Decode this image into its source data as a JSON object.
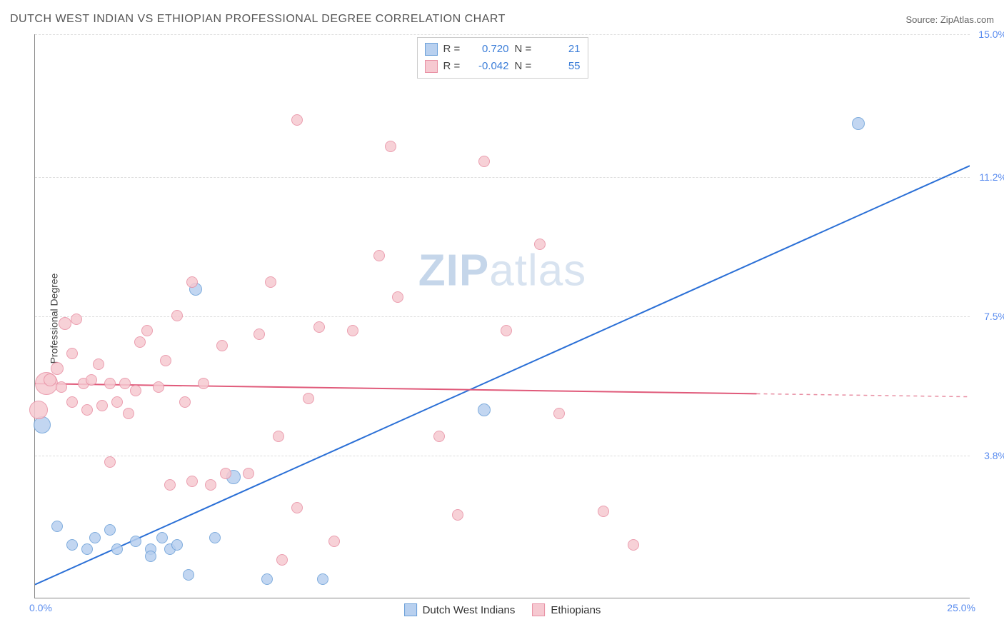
{
  "header": {
    "title": "DUTCH WEST INDIAN VS ETHIOPIAN PROFESSIONAL DEGREE CORRELATION CHART",
    "source": "Source: ZipAtlas.com"
  },
  "chart": {
    "type": "scatter",
    "ylabel": "Professional Degree",
    "xlim": [
      0.0,
      25.0
    ],
    "ylim": [
      0.0,
      15.0
    ],
    "xtick_labels": {
      "min": "0.0%",
      "max": "25.0%"
    },
    "ytick_labels": [
      "3.8%",
      "7.5%",
      "11.2%",
      "15.0%"
    ],
    "ytick_values": [
      3.8,
      7.5,
      11.2,
      15.0
    ],
    "grid_color": "#dddddd",
    "background_color": "#ffffff",
    "axis_color": "#888888",
    "tick_label_color": "#5b8def",
    "watermark": "ZIPatlas",
    "series": [
      {
        "name": "Dutch West Indians",
        "color_fill": "#b8d0ef",
        "color_stroke": "#6a9fd8",
        "trend_color": "#2a6fd6",
        "trend_dashed_color": "#2a6fd6",
        "r": 0.72,
        "n": 21,
        "trend": {
          "x1": 0.0,
          "y1": 0.35,
          "x2": 25.0,
          "y2": 11.5,
          "solid_end_x": 25.0
        },
        "points": [
          {
            "x": 0.2,
            "y": 4.6,
            "r": 12
          },
          {
            "x": 0.6,
            "y": 1.9,
            "r": 8
          },
          {
            "x": 1.0,
            "y": 1.4,
            "r": 8
          },
          {
            "x": 1.4,
            "y": 1.3,
            "r": 8
          },
          {
            "x": 1.6,
            "y": 1.6,
            "r": 8
          },
          {
            "x": 2.0,
            "y": 1.8,
            "r": 8
          },
          {
            "x": 2.2,
            "y": 1.3,
            "r": 8
          },
          {
            "x": 2.7,
            "y": 1.5,
            "r": 8
          },
          {
            "x": 3.1,
            "y": 1.3,
            "r": 8
          },
          {
            "x": 3.1,
            "y": 1.1,
            "r": 8
          },
          {
            "x": 3.4,
            "y": 1.6,
            "r": 8
          },
          {
            "x": 3.6,
            "y": 1.3,
            "r": 8
          },
          {
            "x": 3.8,
            "y": 1.4,
            "r": 8
          },
          {
            "x": 4.1,
            "y": 0.6,
            "r": 8
          },
          {
            "x": 4.8,
            "y": 1.6,
            "r": 8
          },
          {
            "x": 5.3,
            "y": 3.2,
            "r": 10
          },
          {
            "x": 6.2,
            "y": 0.5,
            "r": 8
          },
          {
            "x": 7.7,
            "y": 0.5,
            "r": 8
          },
          {
            "x": 4.3,
            "y": 8.2,
            "r": 9
          },
          {
            "x": 12.0,
            "y": 5.0,
            "r": 9
          },
          {
            "x": 22.0,
            "y": 12.6,
            "r": 9
          }
        ]
      },
      {
        "name": "Ethiopians",
        "color_fill": "#f6c9d1",
        "color_stroke": "#e88fa3",
        "trend_color": "#e05a7a",
        "trend_dashed_color": "#e88fa3",
        "r": -0.042,
        "n": 55,
        "trend": {
          "x1": 0.0,
          "y1": 5.7,
          "x2": 25.0,
          "y2": 5.35,
          "solid_end_x": 19.3
        },
        "points": [
          {
            "x": 0.3,
            "y": 5.7,
            "r": 16
          },
          {
            "x": 0.1,
            "y": 5.0,
            "r": 13
          },
          {
            "x": 0.4,
            "y": 5.8,
            "r": 9
          },
          {
            "x": 0.6,
            "y": 6.1,
            "r": 9
          },
          {
            "x": 0.7,
            "y": 5.6,
            "r": 8
          },
          {
            "x": 0.8,
            "y": 7.3,
            "r": 9
          },
          {
            "x": 1.0,
            "y": 6.5,
            "r": 8
          },
          {
            "x": 1.0,
            "y": 5.2,
            "r": 8
          },
          {
            "x": 1.1,
            "y": 7.4,
            "r": 8
          },
          {
            "x": 1.3,
            "y": 5.7,
            "r": 8
          },
          {
            "x": 1.4,
            "y": 5.0,
            "r": 8
          },
          {
            "x": 1.5,
            "y": 5.8,
            "r": 8
          },
          {
            "x": 1.7,
            "y": 6.2,
            "r": 8
          },
          {
            "x": 1.8,
            "y": 5.1,
            "r": 8
          },
          {
            "x": 2.0,
            "y": 5.7,
            "r": 8
          },
          {
            "x": 2.0,
            "y": 3.6,
            "r": 8
          },
          {
            "x": 2.2,
            "y": 5.2,
            "r": 8
          },
          {
            "x": 2.4,
            "y": 5.7,
            "r": 8
          },
          {
            "x": 2.5,
            "y": 4.9,
            "r": 8
          },
          {
            "x": 2.7,
            "y": 5.5,
            "r": 8
          },
          {
            "x": 2.8,
            "y": 6.8,
            "r": 8
          },
          {
            "x": 3.0,
            "y": 7.1,
            "r": 8
          },
          {
            "x": 3.3,
            "y": 5.6,
            "r": 8
          },
          {
            "x": 3.5,
            "y": 6.3,
            "r": 8
          },
          {
            "x": 3.6,
            "y": 3.0,
            "r": 8
          },
          {
            "x": 3.8,
            "y": 7.5,
            "r": 8
          },
          {
            "x": 4.0,
            "y": 5.2,
            "r": 8
          },
          {
            "x": 4.2,
            "y": 3.1,
            "r": 8
          },
          {
            "x": 4.2,
            "y": 8.4,
            "r": 8
          },
          {
            "x": 4.5,
            "y": 5.7,
            "r": 8
          },
          {
            "x": 4.7,
            "y": 3.0,
            "r": 8
          },
          {
            "x": 5.0,
            "y": 6.7,
            "r": 8
          },
          {
            "x": 5.1,
            "y": 3.3,
            "r": 8
          },
          {
            "x": 5.7,
            "y": 3.3,
            "r": 8
          },
          {
            "x": 6.0,
            "y": 7.0,
            "r": 8
          },
          {
            "x": 6.3,
            "y": 8.4,
            "r": 8
          },
          {
            "x": 6.5,
            "y": 4.3,
            "r": 8
          },
          {
            "x": 6.6,
            "y": 1.0,
            "r": 8
          },
          {
            "x": 7.0,
            "y": 2.4,
            "r": 8
          },
          {
            "x": 7.0,
            "y": 12.7,
            "r": 8
          },
          {
            "x": 7.3,
            "y": 5.3,
            "r": 8
          },
          {
            "x": 7.6,
            "y": 7.2,
            "r": 8
          },
          {
            "x": 8.0,
            "y": 1.5,
            "r": 8
          },
          {
            "x": 8.5,
            "y": 7.1,
            "r": 8
          },
          {
            "x": 9.2,
            "y": 9.1,
            "r": 8
          },
          {
            "x": 9.5,
            "y": 12.0,
            "r": 8
          },
          {
            "x": 9.7,
            "y": 8.0,
            "r": 8
          },
          {
            "x": 10.8,
            "y": 4.3,
            "r": 8
          },
          {
            "x": 11.3,
            "y": 2.2,
            "r": 8
          },
          {
            "x": 12.0,
            "y": 11.6,
            "r": 8
          },
          {
            "x": 12.6,
            "y": 7.1,
            "r": 8
          },
          {
            "x": 14.0,
            "y": 4.9,
            "r": 8
          },
          {
            "x": 15.2,
            "y": 2.3,
            "r": 8
          },
          {
            "x": 16.0,
            "y": 1.4,
            "r": 8
          },
          {
            "x": 13.5,
            "y": 9.4,
            "r": 8
          }
        ]
      }
    ],
    "legend_top": [
      {
        "swatch_fill": "#b8d0ef",
        "swatch_stroke": "#6a9fd8",
        "r_label": "R =",
        "r_val": "0.720",
        "n_label": "N =",
        "n_val": "21"
      },
      {
        "swatch_fill": "#f6c9d1",
        "swatch_stroke": "#e88fa3",
        "r_label": "R =",
        "r_val": "-0.042",
        "n_label": "N =",
        "n_val": "55"
      }
    ],
    "legend_bottom": [
      {
        "swatch_fill": "#b8d0ef",
        "swatch_stroke": "#6a9fd8",
        "label": "Dutch West Indians"
      },
      {
        "swatch_fill": "#f6c9d1",
        "swatch_stroke": "#e88fa3",
        "label": "Ethiopians"
      }
    ]
  }
}
